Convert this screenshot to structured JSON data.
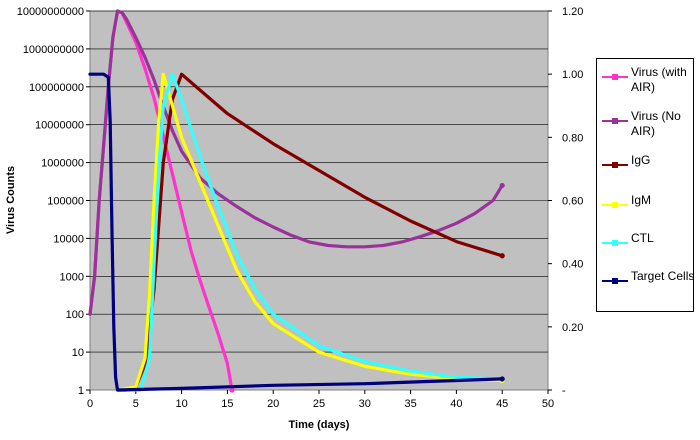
{
  "chart_data": {
    "type": "line",
    "title": "",
    "xlabel": "Time (days)",
    "ylabel": "Virus Counts",
    "xlim": [
      0,
      50
    ],
    "x_ticks": [
      "0",
      "5",
      "10",
      "15",
      "20",
      "25",
      "30",
      "35",
      "40",
      "45",
      "50"
    ],
    "y_left": {
      "scale": "log",
      "range": [
        1,
        10000000000
      ],
      "ticks": [
        "1",
        "10",
        "100",
        "1000",
        "10000",
        "100000",
        "1000000",
        "10000000",
        "100000000",
        "1000000000",
        "10000000000"
      ]
    },
    "y_right": {
      "scale": "linear",
      "range": [
        0,
        1.2
      ],
      "ticks": [
        "-",
        "0.20",
        "0.40",
        "0.60",
        "0.80",
        "1.00",
        "1.20"
      ]
    },
    "grid": true,
    "legend_position": "right",
    "series": [
      {
        "name": "Virus (with AIR)",
        "color": "#ff33cc",
        "marker": "square",
        "axis": "left",
        "points": [
          [
            0,
            100
          ],
          [
            0.5,
            1000
          ],
          [
            1,
            100000
          ],
          [
            1.5,
            3000000
          ],
          [
            2,
            100000000
          ],
          [
            2.5,
            2000000000
          ],
          [
            3,
            10000000000
          ],
          [
            3.5,
            9000000000
          ],
          [
            4,
            5000000000
          ],
          [
            5,
            1500000000
          ],
          [
            6,
            300000000
          ],
          [
            7,
            50000000
          ],
          [
            8,
            5000000
          ],
          [
            9,
            500000
          ],
          [
            10,
            50000
          ],
          [
            11,
            5000
          ],
          [
            12,
            800
          ],
          [
            13,
            150
          ],
          [
            14,
            30
          ],
          [
            15,
            5
          ],
          [
            15.5,
            1
          ]
        ]
      },
      {
        "name": "Virus (No AIR)",
        "color": "#993399",
        "marker": "diamond",
        "axis": "left",
        "points": [
          [
            0,
            100
          ],
          [
            0.5,
            1000
          ],
          [
            1,
            100000
          ],
          [
            1.5,
            3000000
          ],
          [
            2,
            100000000
          ],
          [
            2.5,
            2000000000
          ],
          [
            3,
            10000000000
          ],
          [
            3.5,
            9000000000
          ],
          [
            4,
            6000000000
          ],
          [
            5,
            2000000000
          ],
          [
            6,
            600000000
          ],
          [
            7,
            150000000
          ],
          [
            8,
            30000000
          ],
          [
            9,
            7000000
          ],
          [
            10,
            2000000
          ],
          [
            12,
            400000
          ],
          [
            14,
            150000
          ],
          [
            16,
            70000
          ],
          [
            18,
            35000
          ],
          [
            20,
            20000
          ],
          [
            22,
            12000
          ],
          [
            24,
            8000
          ],
          [
            26,
            6500
          ],
          [
            28,
            6000
          ],
          [
            30,
            6000
          ],
          [
            32,
            6500
          ],
          [
            34,
            8000
          ],
          [
            36,
            11000
          ],
          [
            38,
            16000
          ],
          [
            40,
            25000
          ],
          [
            42,
            45000
          ],
          [
            44,
            100000
          ],
          [
            45,
            250000
          ]
        ]
      },
      {
        "name": "IgG",
        "color": "#800000",
        "marker": "diamond",
        "axis": "right",
        "points": [
          [
            3,
            0
          ],
          [
            4,
            0
          ],
          [
            5,
            0.01
          ],
          [
            6,
            0.08
          ],
          [
            7,
            0.32
          ],
          [
            8,
            0.72
          ],
          [
            9,
            0.92
          ],
          [
            10,
            1.0
          ],
          [
            12,
            0.95
          ],
          [
            15,
            0.875
          ],
          [
            20,
            0.78
          ],
          [
            25,
            0.695
          ],
          [
            30,
            0.61
          ],
          [
            35,
            0.535
          ],
          [
            40,
            0.47
          ],
          [
            45,
            0.425
          ]
        ]
      },
      {
        "name": "IgM",
        "color": "#ffff00",
        "marker": "triangle",
        "axis": "right",
        "points": [
          [
            3,
            0
          ],
          [
            5,
            0.01
          ],
          [
            6,
            0.1
          ],
          [
            6.5,
            0.3
          ],
          [
            7,
            0.6
          ],
          [
            7.5,
            0.85
          ],
          [
            8,
            1.0
          ],
          [
            8.5,
            0.95
          ],
          [
            9,
            0.9
          ],
          [
            10,
            0.8
          ],
          [
            12,
            0.66
          ],
          [
            14,
            0.52
          ],
          [
            16,
            0.38
          ],
          [
            18,
            0.28
          ],
          [
            20,
            0.21
          ],
          [
            25,
            0.12
          ],
          [
            30,
            0.075
          ],
          [
            35,
            0.05
          ],
          [
            40,
            0.035
          ],
          [
            45,
            0.03
          ]
        ]
      },
      {
        "name": "CTL",
        "color": "#33ffff",
        "marker": "cross",
        "axis": "right",
        "points": [
          [
            4,
            0
          ],
          [
            5.5,
            0
          ],
          [
            6.5,
            0.1
          ],
          [
            7,
            0.4
          ],
          [
            7.5,
            0.7
          ],
          [
            8,
            0.9
          ],
          [
            9,
            1.0
          ],
          [
            10,
            0.92
          ],
          [
            12,
            0.74
          ],
          [
            14,
            0.58
          ],
          [
            16,
            0.43
          ],
          [
            18,
            0.32
          ],
          [
            20,
            0.24
          ],
          [
            25,
            0.14
          ],
          [
            30,
            0.09
          ],
          [
            35,
            0.06
          ],
          [
            40,
            0.04
          ],
          [
            45,
            0.035
          ]
        ]
      },
      {
        "name": "Target Cells",
        "color": "#000080",
        "marker": "diamond",
        "axis": "right",
        "points": [
          [
            0,
            1.0
          ],
          [
            1,
            1.0
          ],
          [
            1.5,
            1.0
          ],
          [
            2,
            0.99
          ],
          [
            2.2,
            0.85
          ],
          [
            2.4,
            0.5
          ],
          [
            2.6,
            0.2
          ],
          [
            2.8,
            0.04
          ],
          [
            3,
            0
          ],
          [
            10,
            0.005
          ],
          [
            20,
            0.015
          ],
          [
            30,
            0.02
          ],
          [
            40,
            0.03
          ],
          [
            45,
            0.035
          ]
        ]
      }
    ]
  }
}
